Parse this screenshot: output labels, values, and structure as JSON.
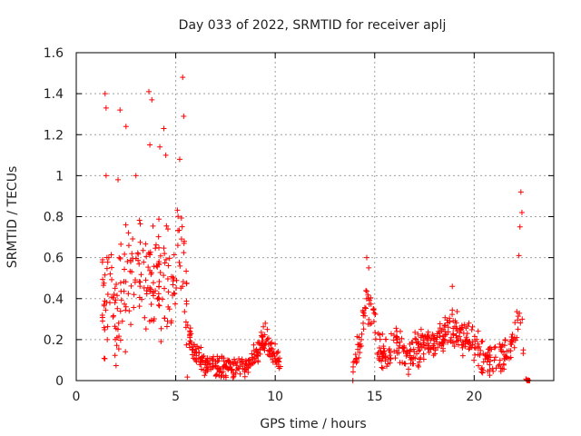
{
  "chart_data": {
    "type": "scatter",
    "title": "Day 033 of 2022, SRMTID for receiver aplj",
    "xlabel": "GPS time / hours",
    "ylabel": "SRMTID / TECUs",
    "xlim": [
      0,
      24
    ],
    "ylim": [
      0,
      1.6
    ],
    "xticks": [
      0,
      5,
      10,
      15,
      20
    ],
    "xtick_labels": [
      "0",
      "5",
      "10",
      "15",
      "20"
    ],
    "yticks": [
      0,
      0.2,
      0.4,
      0.6,
      0.8,
      1.0,
      1.2,
      1.4,
      1.6
    ],
    "ytick_labels": [
      "0",
      "0.2",
      "0.4",
      "0.6",
      "0.8",
      "1",
      "1.2",
      "1.4",
      "1.6"
    ],
    "grid": true,
    "marker": "+",
    "series": [
      {
        "name": "SRMTID",
        "color": "#ff0000",
        "segments": [
          {
            "x_range": [
              1.3,
              5.6
            ],
            "samples": 220,
            "profile": [
              [
                1.3,
                0.35
              ],
              [
                1.6,
                0.45
              ],
              [
                2.0,
                0.3
              ],
              [
                2.5,
                0.45
              ],
              [
                3.0,
                0.55
              ],
              [
                3.5,
                0.5
              ],
              [
                4.0,
                0.45
              ],
              [
                4.5,
                0.5
              ],
              [
                5.0,
                0.5
              ],
              [
                5.3,
                0.6
              ],
              [
                5.6,
                0.25
              ]
            ],
            "spread": 0.25,
            "peaks": [
              [
                1.45,
                1.4
              ],
              [
                1.5,
                1.33
              ],
              [
                2.2,
                1.32
              ],
              [
                2.5,
                1.24
              ],
              [
                3.65,
                1.41
              ],
              [
                3.8,
                1.37
              ],
              [
                4.4,
                1.23
              ],
              [
                5.35,
                1.48
              ],
              [
                5.4,
                1.29
              ],
              [
                1.5,
                1.0
              ],
              [
                2.1,
                0.98
              ],
              [
                3.0,
                1.0
              ],
              [
                3.7,
                1.15
              ],
              [
                4.2,
                1.14
              ],
              [
                5.2,
                1.08
              ],
              [
                4.5,
                1.1
              ]
            ]
          },
          {
            "x_range": [
              5.6,
              10.3
            ],
            "samples": 260,
            "profile": [
              [
                5.6,
                0.25
              ],
              [
                6.0,
                0.12
              ],
              [
                6.5,
                0.08
              ],
              [
                7.0,
                0.07
              ],
              [
                7.5,
                0.06
              ],
              [
                8.0,
                0.06
              ],
              [
                8.5,
                0.07
              ],
              [
                9.0,
                0.12
              ],
              [
                9.4,
                0.2
              ],
              [
                9.8,
                0.15
              ],
              [
                10.3,
                0.08
              ]
            ],
            "spread": 0.05,
            "peaks": [
              [
                9.5,
                0.28
              ],
              [
                9.6,
                0.25
              ]
            ]
          },
          {
            "x_range": [
              13.9,
              22.5
            ],
            "samples": 420,
            "profile": [
              [
                13.9,
                0.05
              ],
              [
                14.3,
                0.2
              ],
              [
                14.6,
                0.4
              ],
              [
                14.9,
                0.3
              ],
              [
                15.2,
                0.15
              ],
              [
                15.6,
                0.12
              ],
              [
                16.0,
                0.18
              ],
              [
                16.5,
                0.12
              ],
              [
                17.0,
                0.15
              ],
              [
                17.5,
                0.18
              ],
              [
                18.0,
                0.2
              ],
              [
                18.5,
                0.22
              ],
              [
                19.0,
                0.25
              ],
              [
                19.5,
                0.2
              ],
              [
                20.0,
                0.18
              ],
              [
                20.5,
                0.12
              ],
              [
                21.0,
                0.1
              ],
              [
                21.5,
                0.12
              ],
              [
                22.0,
                0.2
              ],
              [
                22.3,
                0.35
              ],
              [
                22.5,
                0.15
              ]
            ],
            "spread": 0.08,
            "peaks": [
              [
                14.6,
                0.6
              ],
              [
                14.7,
                0.55
              ],
              [
                18.9,
                0.46
              ],
              [
                22.35,
                0.92
              ],
              [
                22.4,
                0.82
              ],
              [
                22.3,
                0.75
              ],
              [
                22.25,
                0.61
              ]
            ]
          },
          {
            "x_range": [
              22.5,
              22.8
            ],
            "samples": 8,
            "profile": [
              [
                22.5,
                0.01
              ],
              [
                22.8,
                0.0
              ]
            ],
            "spread": 0.005,
            "peaks": []
          }
        ]
      }
    ]
  }
}
